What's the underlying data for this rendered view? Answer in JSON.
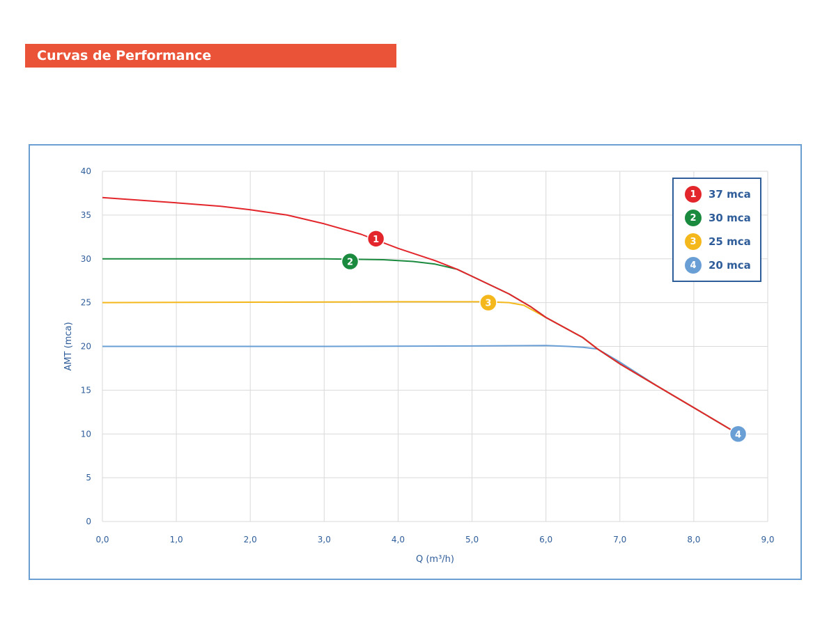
{
  "header": {
    "title": "Curvas de Performance"
  },
  "chart_data": {
    "type": "line",
    "xlabel": "Q (m³/h)",
    "ylabel": "AMT (mca)",
    "xlim": [
      0,
      9
    ],
    "ylim": [
      0,
      40
    ],
    "grid": true,
    "legend_position": "top-right",
    "x_ticks": [
      "0,0",
      "1,0",
      "2,0",
      "3,0",
      "4,0",
      "5,0",
      "6,0",
      "7,0",
      "8,0",
      "9,0"
    ],
    "y_ticks": [
      "0",
      "5",
      "10",
      "15",
      "20",
      "25",
      "30",
      "35",
      "40"
    ],
    "series": [
      {
        "id": "1",
        "name": "37 mca",
        "color": "#e3262b",
        "marker": [
          3.7,
          32.3
        ],
        "points": [
          [
            0,
            37
          ],
          [
            1,
            36.4
          ],
          [
            1.6,
            36
          ],
          [
            2,
            35.6
          ],
          [
            2.5,
            35
          ],
          [
            3,
            34
          ],
          [
            3.5,
            32.8
          ],
          [
            4,
            31.2
          ],
          [
            4.5,
            29.8
          ],
          [
            4.8,
            28.8
          ],
          [
            5,
            28
          ],
          [
            5.5,
            26
          ],
          [
            5.8,
            24.5
          ],
          [
            6,
            23.3
          ],
          [
            6.5,
            21
          ],
          [
            6.7,
            19.7
          ],
          [
            7,
            18
          ],
          [
            7.5,
            15.5
          ],
          [
            8,
            13
          ],
          [
            8.6,
            10
          ]
        ]
      },
      {
        "id": "2",
        "name": "30 mca",
        "color": "#1a8a3e",
        "marker": [
          3.35,
          29.7
        ],
        "points": [
          [
            0,
            30
          ],
          [
            2,
            30
          ],
          [
            3,
            30
          ],
          [
            3.8,
            29.9
          ],
          [
            4.2,
            29.7
          ],
          [
            4.5,
            29.4
          ],
          [
            4.8,
            28.8
          ],
          [
            5,
            28
          ],
          [
            5.5,
            26
          ],
          [
            5.8,
            24.5
          ],
          [
            6,
            23.3
          ],
          [
            6.5,
            21
          ],
          [
            6.7,
            19.7
          ],
          [
            7,
            18
          ],
          [
            7.5,
            15.5
          ],
          [
            8,
            13
          ],
          [
            8.6,
            10
          ]
        ]
      },
      {
        "id": "3",
        "name": "25 mca",
        "color": "#f5b81c",
        "marker": [
          5.22,
          25
        ],
        "points": [
          [
            0,
            25
          ],
          [
            2,
            25.05
          ],
          [
            4,
            25.1
          ],
          [
            5.2,
            25.1
          ],
          [
            5.5,
            25
          ],
          [
            5.7,
            24.7
          ],
          [
            6,
            23.3
          ],
          [
            6.5,
            21
          ],
          [
            6.7,
            19.7
          ],
          [
            7,
            18
          ],
          [
            7.5,
            15.5
          ],
          [
            8,
            13
          ],
          [
            8.6,
            10
          ]
        ]
      },
      {
        "id": "4",
        "name": "20 mca",
        "color": "#6a9fd6",
        "marker": [
          8.6,
          10
        ],
        "points": [
          [
            0,
            20
          ],
          [
            3,
            20
          ],
          [
            5,
            20.05
          ],
          [
            6,
            20.1
          ],
          [
            6.3,
            20
          ],
          [
            6.5,
            19.9
          ],
          [
            6.7,
            19.7
          ],
          [
            7,
            18.2
          ],
          [
            7.5,
            15.5
          ],
          [
            8,
            13
          ],
          [
            8.6,
            10
          ]
        ]
      }
    ]
  }
}
